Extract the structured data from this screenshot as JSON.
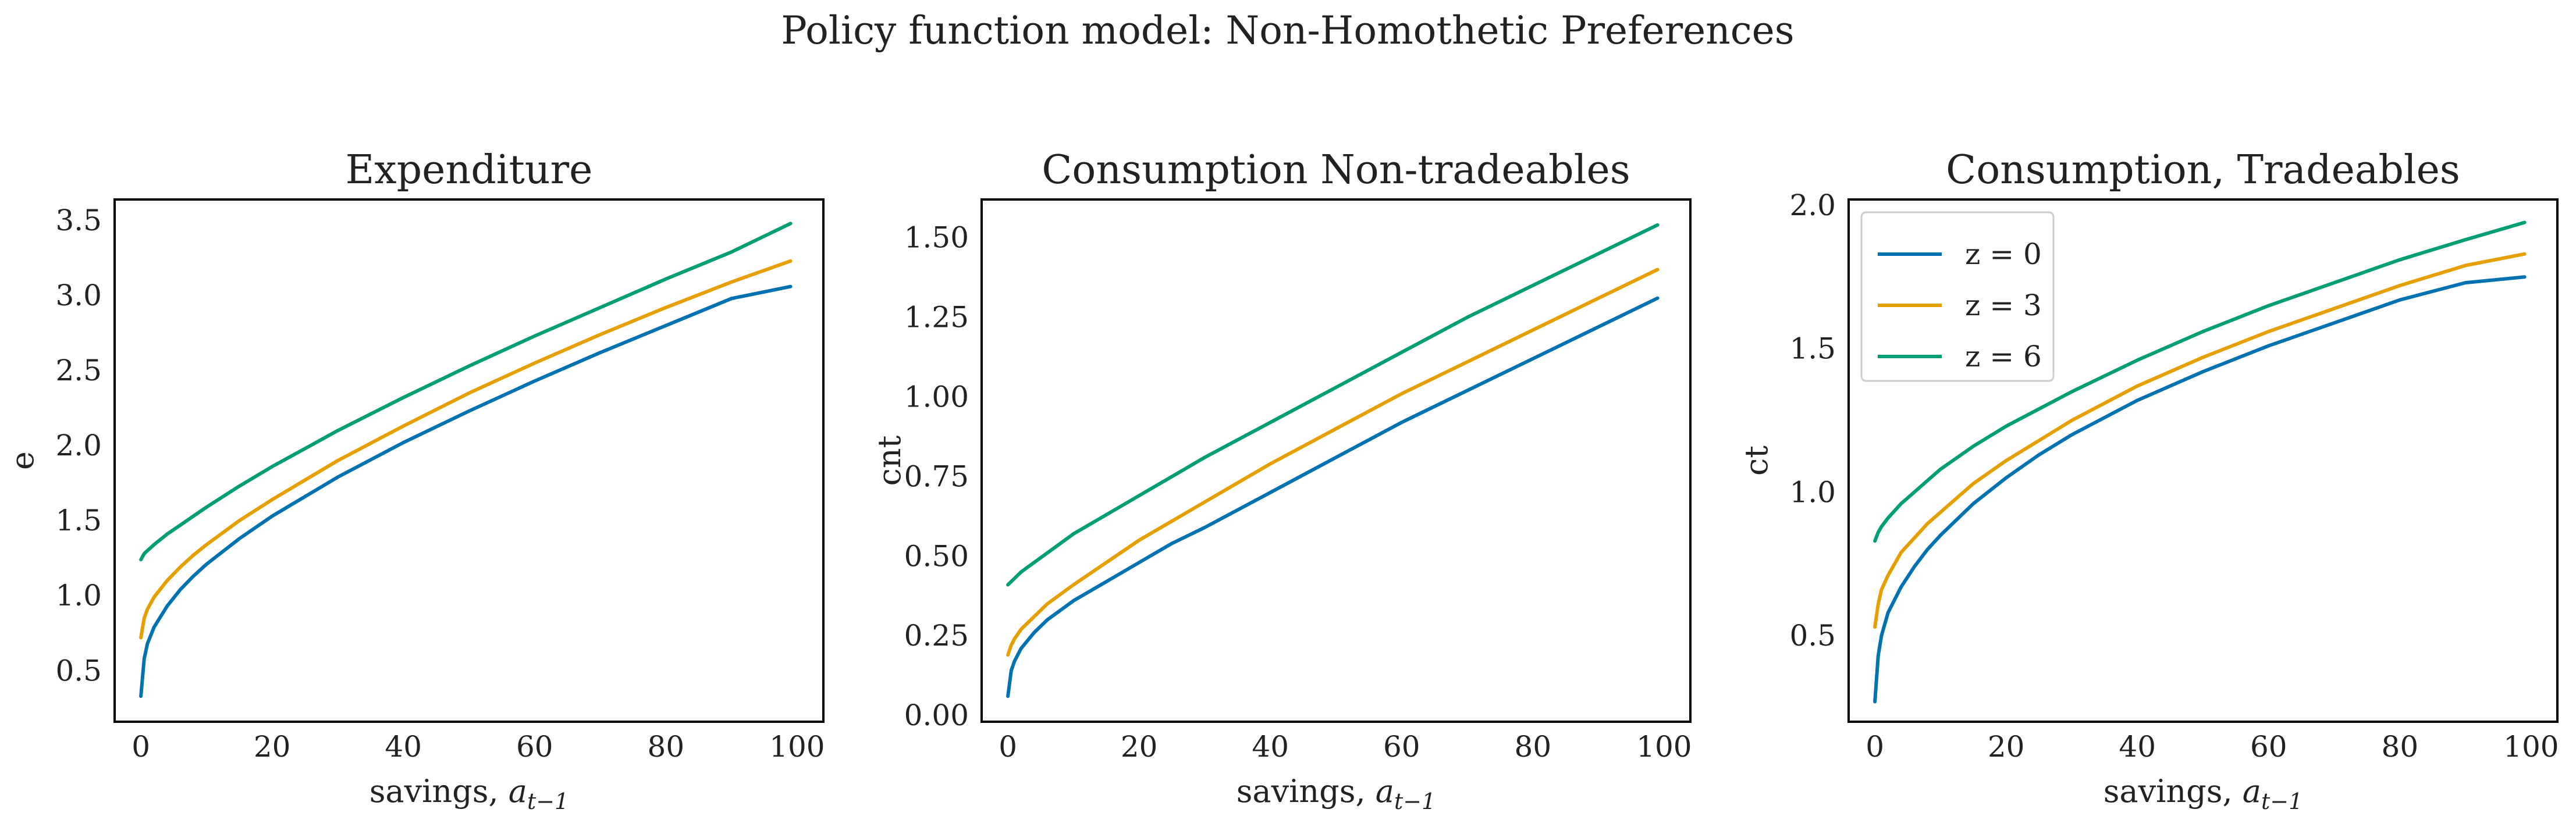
{
  "figure": {
    "suptitle": "Policy function model: Non-Homothetic Preferences"
  },
  "colors": {
    "z0": "#0072B2",
    "z3": "#E69F00",
    "z6": "#009E73",
    "axes": "#000000",
    "text": "#222222"
  },
  "chart_data": [
    {
      "type": "line",
      "title": "Expenditure",
      "xlabel": "savings, a_{t-1}",
      "ylabel": "e",
      "xlim": [
        -4,
        104
      ],
      "ylim": [
        0.16,
        3.64
      ],
      "x_ticks": [
        0,
        20,
        40,
        60,
        80,
        100
      ],
      "y_ticks": [
        0.5,
        1.0,
        1.5,
        2.0,
        2.5,
        3.0,
        3.5
      ],
      "x_tick_labels": [
        "0",
        "20",
        "40",
        "60",
        "80",
        "100"
      ],
      "y_tick_labels": [
        "0.5",
        "1.0",
        "1.5",
        "2.0",
        "2.5",
        "3.0",
        "3.5"
      ],
      "grid": false,
      "x": [
        0,
        0.5,
        1,
        2,
        4,
        6,
        8,
        10,
        15,
        20,
        25,
        30,
        40,
        50,
        60,
        70,
        80,
        90,
        99
      ],
      "series": [
        {
          "name": "z = 0",
          "color": "#0072B2",
          "values": [
            0.33,
            0.58,
            0.68,
            0.79,
            0.93,
            1.04,
            1.13,
            1.21,
            1.38,
            1.53,
            1.66,
            1.79,
            2.02,
            2.23,
            2.43,
            2.62,
            2.8,
            2.98,
            3.06
          ]
        },
        {
          "name": "z = 3",
          "color": "#E69F00",
          "values": [
            0.72,
            0.85,
            0.91,
            0.99,
            1.1,
            1.19,
            1.27,
            1.34,
            1.5,
            1.64,
            1.77,
            1.9,
            2.13,
            2.35,
            2.55,
            2.74,
            2.92,
            3.09,
            3.23
          ]
        },
        {
          "name": "z = 6",
          "color": "#009E73",
          "values": [
            1.24,
            1.28,
            1.3,
            1.34,
            1.41,
            1.47,
            1.53,
            1.59,
            1.73,
            1.86,
            1.98,
            2.1,
            2.32,
            2.53,
            2.73,
            2.92,
            3.11,
            3.29,
            3.48
          ]
        }
      ]
    },
    {
      "type": "line",
      "title": "Consumption Non-tradeables",
      "xlabel": "savings, a_{t-1}",
      "ylabel": "cnt",
      "xlim": [
        -4,
        104
      ],
      "ylim": [
        -0.02,
        1.62
      ],
      "x_ticks": [
        0,
        20,
        40,
        60,
        80,
        100
      ],
      "y_ticks": [
        0.0,
        0.25,
        0.5,
        0.75,
        1.0,
        1.25,
        1.5
      ],
      "x_tick_labels": [
        "0",
        "20",
        "40",
        "60",
        "80",
        "100"
      ],
      "y_tick_labels": [
        "0.00",
        "0.25",
        "0.50",
        "0.75",
        "1.00",
        "1.25",
        "1.50"
      ],
      "grid": false,
      "x": [
        0,
        0.5,
        1,
        2,
        4,
        6,
        8,
        10,
        15,
        20,
        25,
        30,
        40,
        50,
        60,
        70,
        80,
        90,
        99
      ],
      "series": [
        {
          "name": "z = 0",
          "color": "#0072B2",
          "values": [
            0.06,
            0.14,
            0.17,
            0.21,
            0.26,
            0.3,
            0.33,
            0.36,
            0.42,
            0.48,
            0.54,
            0.59,
            0.7,
            0.81,
            0.92,
            1.02,
            1.12,
            1.22,
            1.31
          ]
        },
        {
          "name": "z = 3",
          "color": "#E69F00",
          "values": [
            0.19,
            0.22,
            0.24,
            0.27,
            0.31,
            0.35,
            0.38,
            0.41,
            0.48,
            0.55,
            0.61,
            0.67,
            0.79,
            0.9,
            1.01,
            1.11,
            1.21,
            1.31,
            1.4
          ]
        },
        {
          "name": "z = 6",
          "color": "#009E73",
          "values": [
            0.41,
            0.42,
            0.43,
            0.45,
            0.48,
            0.51,
            0.54,
            0.57,
            0.63,
            0.69,
            0.75,
            0.81,
            0.92,
            1.03,
            1.14,
            1.25,
            1.35,
            1.45,
            1.54
          ]
        }
      ]
    },
    {
      "type": "line",
      "title": "Consumption, Tradeables",
      "xlabel": "savings, a_{t-1}",
      "ylabel": "ct",
      "xlim": [
        -4,
        104
      ],
      "ylim": [
        0.2,
        2.02
      ],
      "x_ticks": [
        0,
        20,
        40,
        60,
        80,
        100
      ],
      "y_ticks": [
        0.5,
        1.0,
        1.5,
        2.0
      ],
      "x_tick_labels": [
        "0",
        "20",
        "40",
        "60",
        "80",
        "100"
      ],
      "y_tick_labels": [
        "0.5",
        "1.0",
        "1.5",
        "2.0"
      ],
      "grid": false,
      "legend": {
        "position": "top-left",
        "entries": [
          "z = 0",
          "z = 3",
          "z = 6"
        ]
      },
      "x": [
        0,
        0.5,
        1,
        2,
        4,
        6,
        8,
        10,
        15,
        20,
        25,
        30,
        40,
        50,
        60,
        70,
        80,
        90,
        99
      ],
      "series": [
        {
          "name": "z = 0",
          "color": "#0072B2",
          "values": [
            0.27,
            0.43,
            0.5,
            0.58,
            0.67,
            0.74,
            0.8,
            0.85,
            0.96,
            1.05,
            1.13,
            1.2,
            1.32,
            1.42,
            1.51,
            1.59,
            1.67,
            1.73,
            1.75
          ]
        },
        {
          "name": "z = 3",
          "color": "#E69F00",
          "values": [
            0.53,
            0.61,
            0.66,
            0.71,
            0.79,
            0.84,
            0.89,
            0.93,
            1.03,
            1.11,
            1.18,
            1.25,
            1.37,
            1.47,
            1.56,
            1.64,
            1.72,
            1.79,
            1.83
          ]
        },
        {
          "name": "z = 6",
          "color": "#009E73",
          "values": [
            0.83,
            0.86,
            0.88,
            0.91,
            0.96,
            1.0,
            1.04,
            1.08,
            1.16,
            1.23,
            1.29,
            1.35,
            1.46,
            1.56,
            1.65,
            1.73,
            1.81,
            1.88,
            1.94
          ]
        }
      ]
    }
  ]
}
